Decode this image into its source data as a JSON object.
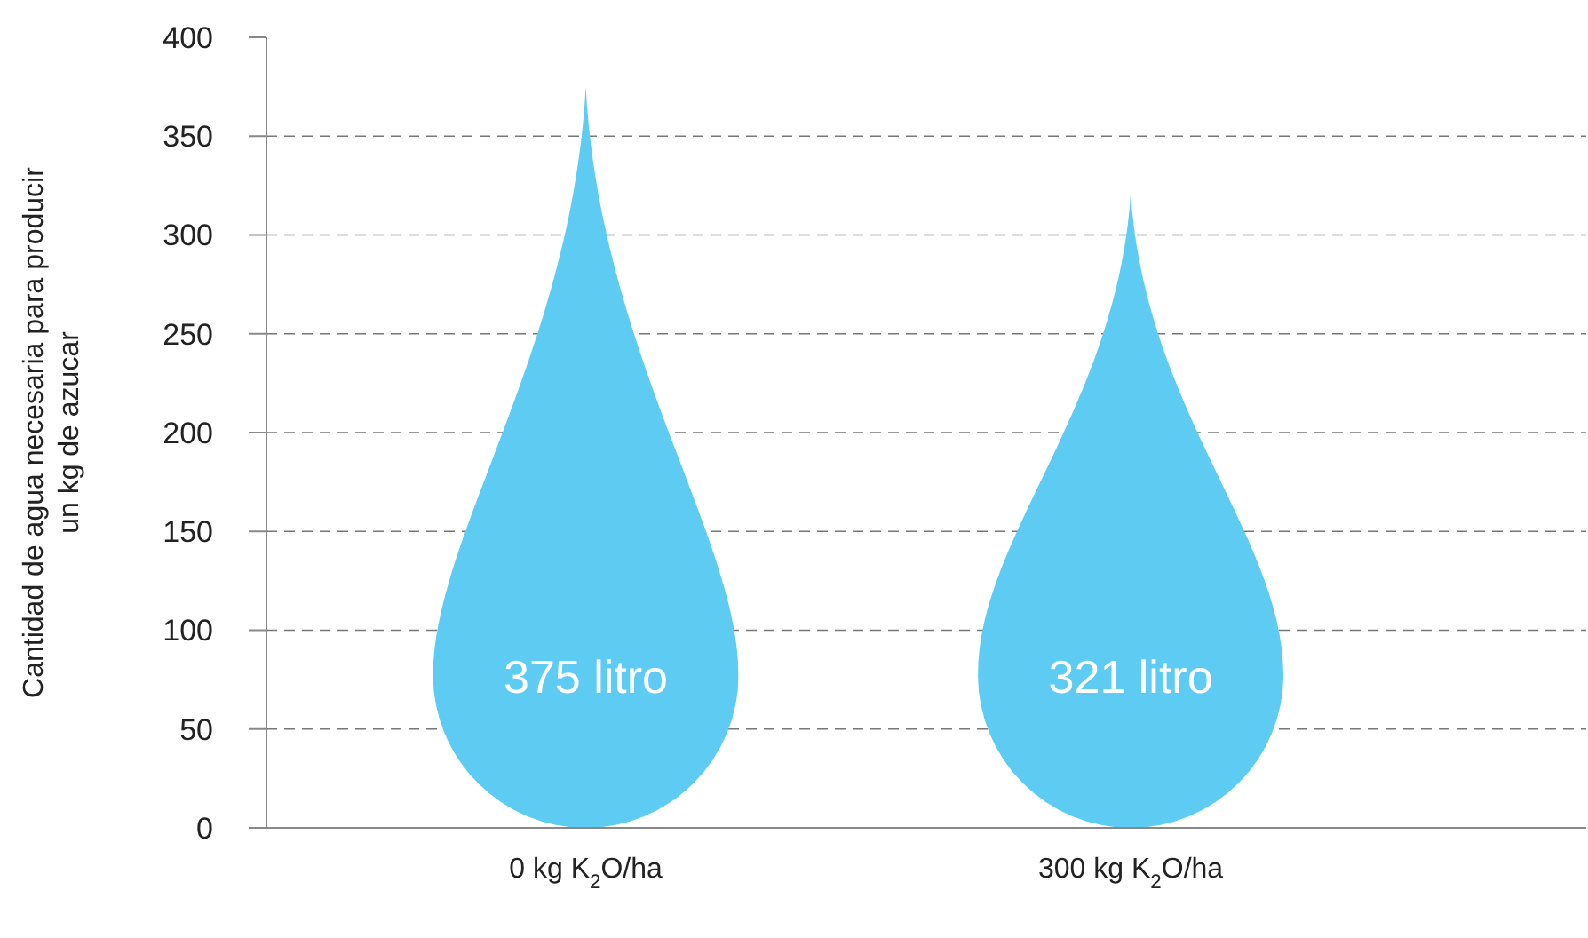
{
  "chart_data": {
    "type": "bar",
    "ylabel": "Cantidad de agua necesaria para producir un kg de azucar",
    "categories": [
      "0 kg K$_{2}$O/ha",
      "300 kg K$_{2}$O/ha"
    ],
    "values": [
      375,
      321
    ],
    "color": "#5ecbf3",
    "value_labels": [
      "375 litro",
      "321 litro"
    ],
    "ylim": [
      0,
      400
    ],
    "yticks": [
      0,
      50,
      100,
      150,
      200,
      250,
      300,
      350,
      400
    ],
    "grid": "y"
  }
}
